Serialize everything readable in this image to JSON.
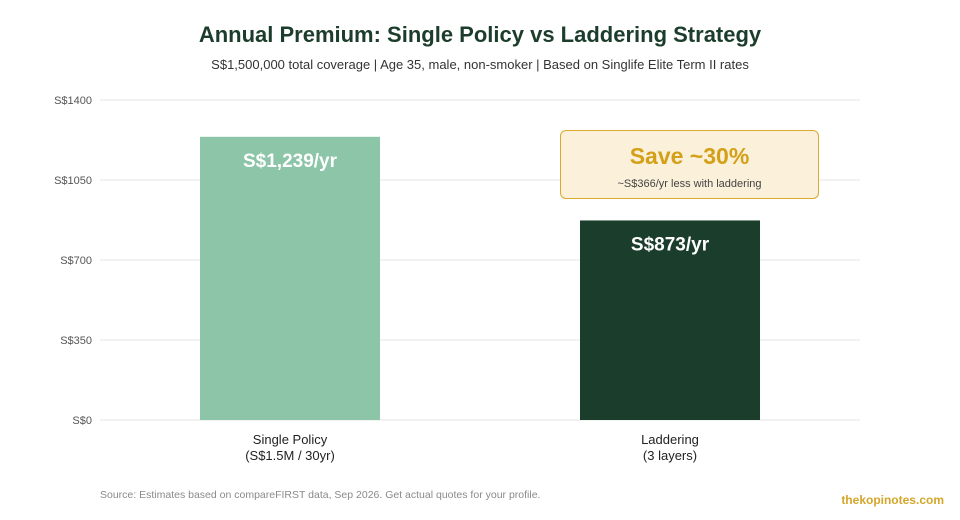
{
  "header": {
    "title": "Annual Premium: Single Policy vs Laddering Strategy",
    "subtitle": "S$1,500,000 total coverage | Age 35, male, non-smoker | Based on Singlife Elite Term II rates"
  },
  "chart_data": {
    "type": "bar",
    "categories": [
      [
        "Single Policy",
        "(S$1.5M / 30yr)"
      ],
      [
        "Laddering",
        "(3 layers)"
      ]
    ],
    "values": [
      1239,
      873
    ],
    "data_labels": [
      "S$1,239/yr",
      "S$873/yr"
    ],
    "bar_colors": [
      "#8dc5a9",
      "#1b3d2b"
    ],
    "ylim": [
      0,
      1400
    ],
    "yticks": [
      0,
      350,
      700,
      1050,
      1400
    ],
    "ytick_labels": [
      "S$0",
      "S$350",
      "S$700",
      "S$1050",
      "S$1400"
    ],
    "grid": true,
    "legend": "none"
  },
  "callout": {
    "title": "Save ~30%",
    "subtitle": "~S$366/yr less with laddering"
  },
  "footer": {
    "source": "Source: Estimates based on compareFIRST data, Sep 2026. Get actual quotes for your profile.",
    "brand": "thekopinotes.com"
  }
}
